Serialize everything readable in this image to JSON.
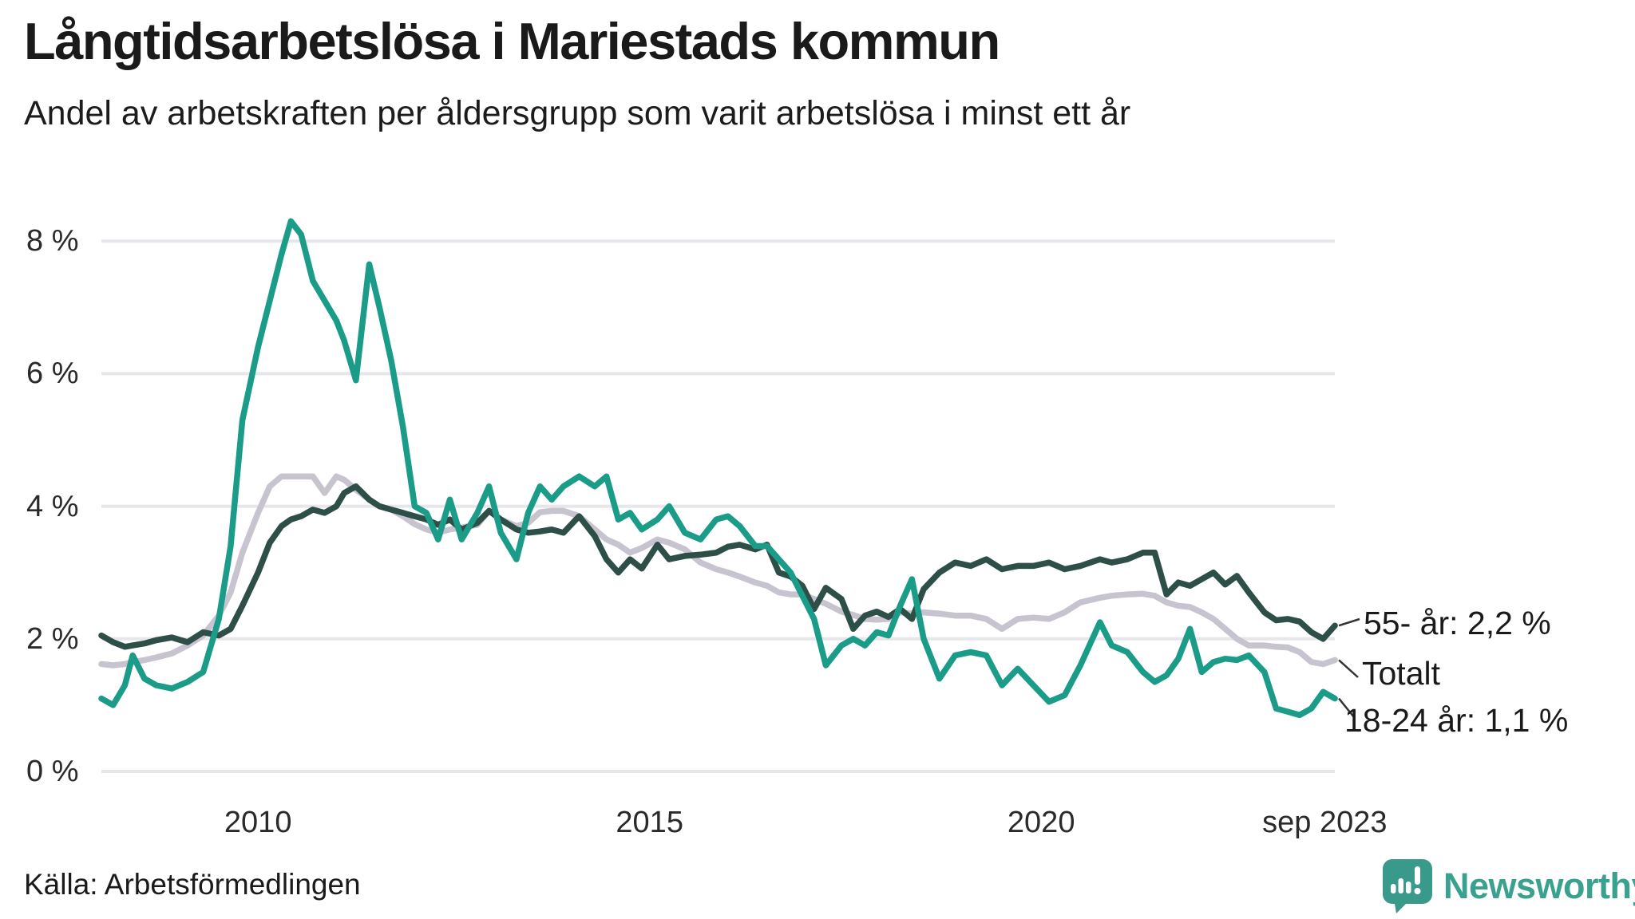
{
  "header": {
    "title": "Långtidsarbetslösa i Mariestads kommun",
    "subtitle": "Andel av arbetskraften per åldersgrupp som varit arbetslösa i minst ett år"
  },
  "footer": {
    "source": "Källa: Arbetsförmedlingen",
    "brand": "Newsworthy",
    "logo_icon": "bar-chart-speech-bubble-icon"
  },
  "colors": {
    "youth_line": "#1b9c89",
    "older_line": "#2d4f48",
    "total_line": "#c7c4cf",
    "grid": "#e7e6ea",
    "text": "#1a1a1a",
    "brand_teal": "#3aa18f",
    "connector": "#333333"
  },
  "chart_data": {
    "type": "line",
    "title": "Långtidsarbetslösa i Mariestads kommun",
    "subtitle": "Andel av arbetskraften per åldersgrupp som varit arbetslösa i minst ett år",
    "unit": "%",
    "grid": "horizontal",
    "legend_position": "right-end-labels",
    "xlim": [
      2008.0,
      2023.75
    ],
    "ylim": [
      0,
      8.6
    ],
    "yticks": [
      {
        "label": "8 %",
        "value": 8
      },
      {
        "label": "6 %",
        "value": 6
      },
      {
        "label": "4 %",
        "value": 4
      },
      {
        "label": "2 %",
        "value": 2
      },
      {
        "label": "0 %",
        "value": 0
      }
    ],
    "xticks": [
      {
        "label": "2010",
        "year": 2010
      },
      {
        "label": "2015",
        "year": 2015
      },
      {
        "label": "2020",
        "year": 2020
      },
      {
        "label": "sep 2023",
        "year": 2023.62
      }
    ],
    "x": [
      2008.0,
      2008.15,
      2008.3,
      2008.4,
      2008.55,
      2008.7,
      2008.9,
      2009.1,
      2009.3,
      2009.5,
      2009.65,
      2009.8,
      2010.0,
      2010.15,
      2010.3,
      2010.42,
      2010.55,
      2010.7,
      2010.85,
      2011.0,
      2011.1,
      2011.25,
      2011.42,
      2011.55,
      2011.7,
      2011.85,
      2012.0,
      2012.15,
      2012.3,
      2012.45,
      2012.6,
      2012.8,
      2012.95,
      2013.1,
      2013.3,
      2013.45,
      2013.6,
      2013.75,
      2013.9,
      2014.1,
      2014.3,
      2014.45,
      2014.6,
      2014.75,
      2014.9,
      2015.1,
      2015.25,
      2015.45,
      2015.65,
      2015.85,
      2016.0,
      2016.15,
      2016.35,
      2016.5,
      2016.65,
      2016.8,
      2016.95,
      2017.1,
      2017.25,
      2017.45,
      2017.6,
      2017.75,
      2017.9,
      2018.05,
      2018.2,
      2018.35,
      2018.5,
      2018.7,
      2018.9,
      2019.1,
      2019.3,
      2019.5,
      2019.7,
      2019.9,
      2020.1,
      2020.3,
      2020.5,
      2020.75,
      2020.9,
      2021.1,
      2021.3,
      2021.45,
      2021.6,
      2021.75,
      2021.9,
      2022.05,
      2022.2,
      2022.35,
      2022.5,
      2022.65,
      2022.85,
      2023.0,
      2023.15,
      2023.3,
      2023.45,
      2023.6,
      2023.75
    ],
    "series": [
      {
        "name": "55- år",
        "end_label": "55- år: 2,2 %",
        "end_value": 2.2,
        "color": "#2d4f48",
        "values": [
          2.05,
          1.95,
          1.88,
          1.9,
          1.93,
          1.98,
          2.02,
          1.95,
          2.1,
          2.05,
          2.15,
          2.5,
          3.0,
          3.45,
          3.7,
          3.8,
          3.85,
          3.95,
          3.9,
          4.0,
          4.2,
          4.3,
          4.1,
          4.0,
          3.95,
          3.9,
          3.85,
          3.8,
          3.72,
          3.8,
          3.65,
          3.75,
          3.93,
          3.8,
          3.65,
          3.6,
          3.62,
          3.65,
          3.6,
          3.85,
          3.55,
          3.2,
          3.0,
          3.2,
          3.06,
          3.42,
          3.2,
          3.25,
          3.27,
          3.3,
          3.39,
          3.42,
          3.35,
          3.42,
          3.0,
          2.94,
          2.8,
          2.45,
          2.77,
          2.6,
          2.15,
          2.35,
          2.41,
          2.33,
          2.45,
          2.3,
          2.75,
          3.0,
          3.15,
          3.1,
          3.2,
          3.05,
          3.1,
          3.1,
          3.15,
          3.05,
          3.1,
          3.2,
          3.15,
          3.2,
          3.3,
          3.3,
          2.67,
          2.85,
          2.8,
          2.9,
          3.0,
          2.82,
          2.95,
          2.7,
          2.4,
          2.28,
          2.3,
          2.26,
          2.1,
          2.0,
          2.2
        ]
      },
      {
        "name": "Totalt",
        "end_label": "Totalt",
        "end_value": 1.7,
        "color": "#c7c4cf",
        "values": [
          1.62,
          1.6,
          1.62,
          1.65,
          1.68,
          1.72,
          1.78,
          1.9,
          2.05,
          2.35,
          2.7,
          3.3,
          3.9,
          4.3,
          4.45,
          4.45,
          4.45,
          4.45,
          4.2,
          4.45,
          4.4,
          4.25,
          4.1,
          4.0,
          3.95,
          3.85,
          3.73,
          3.65,
          3.6,
          3.65,
          3.68,
          3.72,
          3.93,
          3.8,
          3.7,
          3.75,
          3.91,
          3.93,
          3.93,
          3.85,
          3.65,
          3.5,
          3.42,
          3.3,
          3.37,
          3.5,
          3.45,
          3.35,
          3.15,
          3.05,
          3.0,
          2.94,
          2.85,
          2.8,
          2.7,
          2.67,
          2.67,
          2.6,
          2.53,
          2.41,
          2.36,
          2.3,
          2.29,
          2.3,
          2.4,
          2.38,
          2.4,
          2.38,
          2.35,
          2.35,
          2.3,
          2.15,
          2.3,
          2.32,
          2.3,
          2.4,
          2.55,
          2.62,
          2.65,
          2.67,
          2.68,
          2.65,
          2.55,
          2.5,
          2.48,
          2.4,
          2.3,
          2.15,
          2.0,
          1.9,
          1.9,
          1.88,
          1.87,
          1.8,
          1.65,
          1.62,
          1.68
        ]
      },
      {
        "name": "18-24 år",
        "end_label": "18-24 år: 1,1 %",
        "end_value": 1.1,
        "color": "#1b9c89",
        "values": [
          1.1,
          1.0,
          1.3,
          1.75,
          1.4,
          1.3,
          1.25,
          1.35,
          1.5,
          2.3,
          3.4,
          5.3,
          6.4,
          7.1,
          7.8,
          8.3,
          8.1,
          7.4,
          7.1,
          6.8,
          6.5,
          5.9,
          7.65,
          7.0,
          6.2,
          5.2,
          4.0,
          3.9,
          3.5,
          4.1,
          3.5,
          3.9,
          4.3,
          3.6,
          3.2,
          3.9,
          4.3,
          4.1,
          4.3,
          4.45,
          4.3,
          4.45,
          3.8,
          3.9,
          3.65,
          3.8,
          4.0,
          3.6,
          3.5,
          3.8,
          3.85,
          3.7,
          3.4,
          3.4,
          3.2,
          3.0,
          2.65,
          2.3,
          1.6,
          1.9,
          2.0,
          1.9,
          2.1,
          2.05,
          2.5,
          2.9,
          2.0,
          1.4,
          1.75,
          1.8,
          1.75,
          1.3,
          1.55,
          1.3,
          1.05,
          1.15,
          1.6,
          2.25,
          1.9,
          1.8,
          1.5,
          1.35,
          1.45,
          1.7,
          2.15,
          1.5,
          1.65,
          1.7,
          1.68,
          1.75,
          1.5,
          0.95,
          0.9,
          0.85,
          0.95,
          1.2,
          1.1
        ]
      }
    ]
  }
}
